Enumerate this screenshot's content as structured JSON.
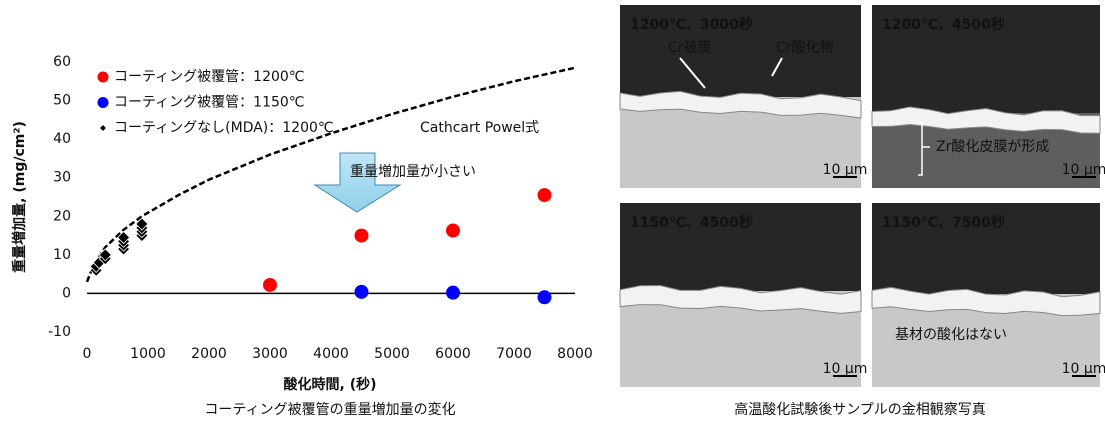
{
  "chart_data": {
    "type": "scatter",
    "x_label": "酸化時間, (秒)",
    "y_label": "重量増加量, (mg/cm²)",
    "caption": "コーティング被覆管の重量増加量の変化",
    "xlim": [
      0,
      8000
    ],
    "xticks": [
      0,
      1000,
      2000,
      3000,
      4000,
      5000,
      6000,
      7000,
      8000
    ],
    "ylim": [
      -10,
      60
    ],
    "yticks": [
      -10,
      0,
      10,
      20,
      30,
      40,
      50,
      60
    ],
    "legend": "upper left",
    "series": [
      {
        "name": "コーティング被覆管：1200℃",
        "color": "#ff0000",
        "marker": "circle",
        "x": [
          3000,
          4500,
          6000,
          7500
        ],
        "values": [
          2.2,
          15,
          16.3,
          25.5
        ]
      },
      {
        "name": "コーティング被覆管：1150℃",
        "color": "#0000ff",
        "marker": "circle",
        "x": [
          4500,
          6000,
          7500
        ],
        "values": [
          0.4,
          0.2,
          -1
        ]
      },
      {
        "name": "コーティングなし(MDA)：1200℃",
        "color": "#000000",
        "marker": "diamond",
        "x": [
          150,
          150,
          200,
          300,
          300,
          600,
          600,
          600,
          600,
          900,
          900,
          900,
          900
        ],
        "values": [
          6,
          7,
          8,
          9,
          10,
          11.5,
          12.5,
          13.5,
          14.5,
          15,
          16,
          17,
          18
        ]
      }
    ],
    "reference_curve": {
      "label": "Cathcart Powel式",
      "color": "#000000",
      "x": [
        0,
        100,
        300,
        600,
        900,
        1500,
        2000,
        3000,
        4000,
        5000,
        6000,
        7000,
        8000
      ],
      "values": [
        3,
        7,
        12,
        16.5,
        20,
        25.5,
        29.5,
        36,
        41.5,
        46.5,
        51,
        55,
        58.5
      ]
    },
    "annotation": "重量増加量が小さい"
  },
  "micrographs": {
    "caption": "高温酸化試験後サンプルの金相観察写真",
    "scale_label": "10 μm",
    "panels": [
      {
        "title": "1200℃、3000秒",
        "labels": [
          "Cr被膜",
          "Cr酸化物"
        ]
      },
      {
        "title": "1200℃、4500秒",
        "labels": [
          "Zr酸化皮膜が形成"
        ]
      },
      {
        "title": "1150℃、4500秒",
        "labels": []
      },
      {
        "title": "1150℃、7500秒",
        "labels": [
          "基材の酸化はない"
        ]
      }
    ]
  }
}
